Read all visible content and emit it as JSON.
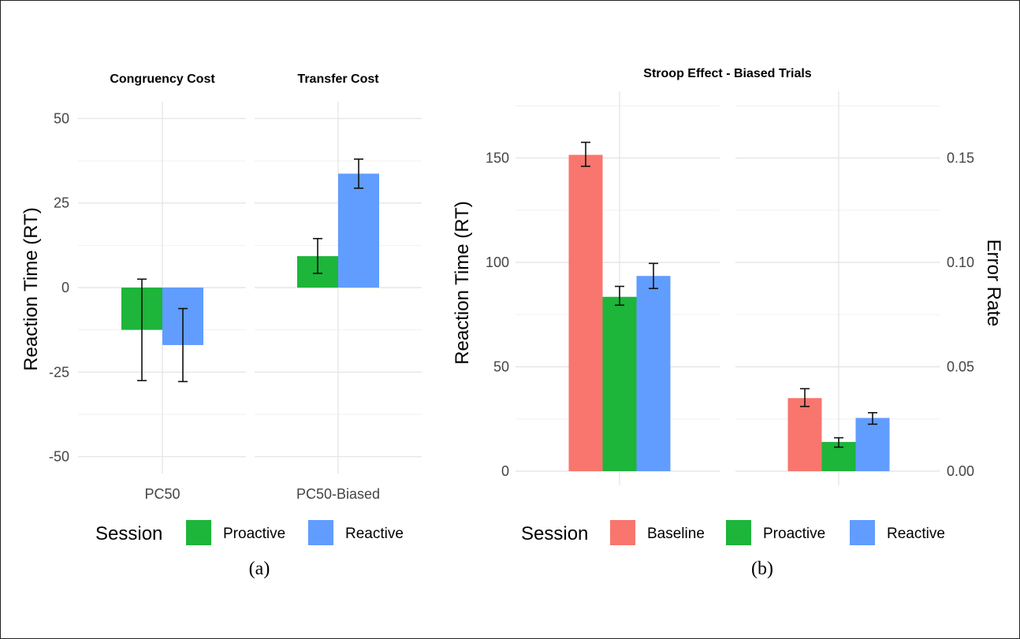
{
  "colors": {
    "baseline": "#F8766D",
    "proactive": "#1DB53A",
    "reactive": "#619CFF"
  },
  "captions": {
    "a": "(a)",
    "b": "(b)"
  },
  "chart_data": [
    {
      "type": "bar",
      "panel": "(a)",
      "ylabel": "Reaction Time (RT)",
      "ylim": [
        -55,
        55
      ],
      "yticks": [
        -50,
        -25,
        0,
        25,
        50
      ],
      "grid": true,
      "legend": {
        "title": "Session",
        "position": "bottom",
        "entries": [
          "Proactive",
          "Reactive"
        ]
      },
      "facets": [
        {
          "title": "Congruency Cost",
          "categories": [
            "PC50"
          ],
          "series": [
            {
              "name": "Proactive",
              "values": [
                -12.5
              ],
              "error_low": [
                -27.5
              ],
              "error_high": [
                2.5
              ]
            },
            {
              "name": "Reactive",
              "values": [
                -17
              ],
              "error_low": [
                -27.8
              ],
              "error_high": [
                -6.2
              ]
            }
          ]
        },
        {
          "title": "Transfer Cost",
          "categories": [
            "PC50-Biased"
          ],
          "series": [
            {
              "name": "Proactive",
              "values": [
                9.3
              ],
              "error_low": [
                4.2
              ],
              "error_high": [
                14.5
              ]
            },
            {
              "name": "Reactive",
              "values": [
                33.7
              ],
              "error_low": [
                29.4
              ],
              "error_high": [
                38
              ]
            }
          ]
        }
      ]
    },
    {
      "type": "bar",
      "panel": "(b)",
      "title": "Stroop Effect - Biased Trials",
      "ylabel": "Reaction Time (RT)",
      "y2label": "Error Rate",
      "ylim": [
        0,
        180
      ],
      "yticks": [
        0,
        50,
        100,
        150
      ],
      "y2lim": [
        0,
        0.18
      ],
      "y2ticks": [
        "0.00",
        "0.05",
        "0.10",
        "0.15"
      ],
      "grid": true,
      "legend": {
        "title": "Session",
        "position": "bottom",
        "entries": [
          "Baseline",
          "Proactive",
          "Reactive"
        ]
      },
      "facets": [
        {
          "measure": "Reaction Time (RT)",
          "series": [
            {
              "name": "Baseline",
              "values": [
                151.5
              ],
              "error_low": [
                146
              ],
              "error_high": [
                157.5
              ]
            },
            {
              "name": "Proactive",
              "values": [
                83.5
              ],
              "error_low": [
                79.5
              ],
              "error_high": [
                88.5
              ]
            },
            {
              "name": "Reactive",
              "values": [
                93.5
              ],
              "error_low": [
                87.5
              ],
              "error_high": [
                99.5
              ]
            }
          ]
        },
        {
          "measure": "Error Rate",
          "series": [
            {
              "name": "Baseline",
              "values": [
                0.035
              ],
              "error_low": [
                0.031
              ],
              "error_high": [
                0.0395
              ]
            },
            {
              "name": "Proactive",
              "values": [
                0.014
              ],
              "error_low": [
                0.0115
              ],
              "error_high": [
                0.016
              ]
            },
            {
              "name": "Reactive",
              "values": [
                0.0255
              ],
              "error_low": [
                0.0225
              ],
              "error_high": [
                0.028
              ]
            }
          ]
        }
      ]
    }
  ]
}
